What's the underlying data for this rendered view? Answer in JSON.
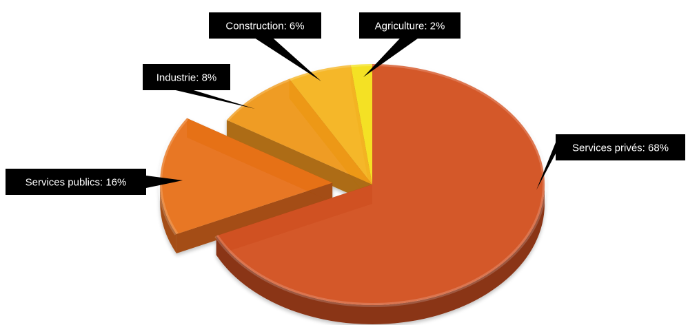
{
  "chart_data": {
    "type": "pie",
    "title": "",
    "categories": [
      "Services privés",
      "Services publics",
      "Industrie",
      "Construction",
      "Agriculture"
    ],
    "values": [
      68,
      16,
      8,
      6,
      2
    ],
    "labels": [
      "Services privés: 68%",
      "Services publics: 16%",
      "Industrie: 8%",
      "Construction: 6%",
      "Agriculture: 2%"
    ],
    "exploded": [
      "Services publics"
    ],
    "colors": [
      "#d35221",
      "#e8731a",
      "#ef9a1a",
      "#f6b521",
      "#f5e11b"
    ],
    "side_colors": [
      "#8a3416",
      "#a44d12",
      "#ad6c12",
      "#b48418",
      "#b3a414"
    ],
    "style": "3d",
    "legend": "none"
  }
}
